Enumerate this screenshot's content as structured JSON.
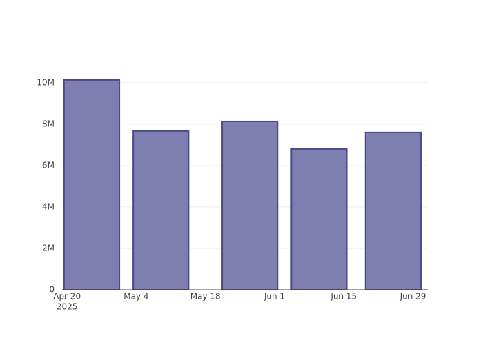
{
  "chart_data": {
    "type": "bar",
    "x": [
      "2025-04-25",
      "2025-05-09",
      "2025-05-27",
      "2025-06-10",
      "2025-06-25"
    ],
    "values": [
      10130000,
      7670000,
      8130000,
      6800000,
      7600000
    ],
    "color": "#7f7eb0",
    "edge_color": "#4b4a87",
    "bar_width_days": 11.2,
    "xlim": [
      "2025-04-19",
      "2025-07-02"
    ],
    "xticks": [
      {
        "value": "2025-04-20",
        "label": "Apr 20"
      },
      {
        "value": "2025-05-04",
        "label": "May 4"
      },
      {
        "value": "2025-05-18",
        "label": "May 18"
      },
      {
        "value": "2025-06-01",
        "label": "Jun 1"
      },
      {
        "value": "2025-06-15",
        "label": "Jun 15"
      },
      {
        "value": "2025-06-29",
        "label": "Jun 29"
      }
    ],
    "x_year": "2025",
    "ylim": [
      0,
      10660000
    ],
    "yticks": [
      0,
      {
        "value": 2000000,
        "label": "2M"
      },
      {
        "value": 4000000,
        "label": "4M"
      },
      {
        "value": 6000000,
        "label": "6M"
      },
      {
        "value": 8000000,
        "label": "8M"
      },
      {
        "value": 10000000,
        "label": "10M"
      }
    ],
    "grid": true
  }
}
